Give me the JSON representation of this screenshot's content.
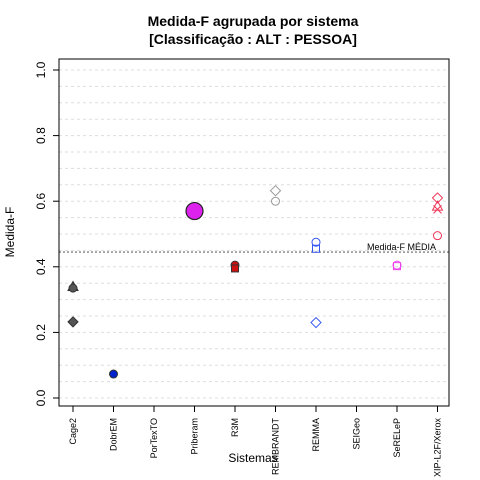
{
  "chart_data": {
    "type": "scatter",
    "title": "Medida-F agrupada por sistema",
    "subtitle": "[Classificação : ALT : PESSOA]",
    "xlabel": "Sistemas",
    "ylabel": "Medida-F",
    "ylim": [
      0.0,
      1.0
    ],
    "yticks": [
      "0.0",
      "0.2",
      "0.4",
      "0.6",
      "0.8",
      "1.0"
    ],
    "categories": [
      "Cage2",
      "DobrEM",
      "PorTexTO",
      "Priberam",
      "R3M",
      "REMBRANDT",
      "REMMA",
      "SEIGeo",
      "SeRELeP",
      "XIP-L2F/Xerox"
    ],
    "grid": true,
    "reference_line": {
      "label": "Medida-F MÉDIA",
      "value": 0.445
    },
    "points": [
      {
        "category": "Cage2",
        "y": 0.34,
        "shape": "triangle",
        "color": "#555555",
        "filled": true
      },
      {
        "category": "Cage2",
        "y": 0.335,
        "shape": "circle",
        "color": "#555555",
        "filled": true
      },
      {
        "category": "Cage2",
        "y": 0.232,
        "shape": "diamond",
        "color": "#555555",
        "filled": true
      },
      {
        "category": "DobrEM",
        "y": 0.073,
        "shape": "circle",
        "color": "#0022cc",
        "filled": true
      },
      {
        "category": "Priberam",
        "y": 0.57,
        "shape": "circle-large",
        "color": "#dd22ee",
        "filled": true
      },
      {
        "category": "R3M",
        "y": 0.405,
        "shape": "circle",
        "color": "#cc1111",
        "filled": true
      },
      {
        "category": "R3M",
        "y": 0.395,
        "shape": "square",
        "color": "#cc1111",
        "filled": true
      },
      {
        "category": "REMBRANDT",
        "y": 0.632,
        "shape": "diamond",
        "color": "#999999",
        "filled": false
      },
      {
        "category": "REMBRANDT",
        "y": 0.6,
        "shape": "circle",
        "color": "#999999",
        "filled": false
      },
      {
        "category": "REMMA",
        "y": 0.475,
        "shape": "circle",
        "color": "#3355ee",
        "filled": false
      },
      {
        "category": "REMMA",
        "y": 0.455,
        "shape": "square",
        "color": "#3355ee",
        "filled": false
      },
      {
        "category": "REMMA",
        "y": 0.23,
        "shape": "diamond",
        "color": "#3355ee",
        "filled": false
      },
      {
        "category": "SeRELeP",
        "y": 0.405,
        "shape": "circle",
        "color": "#ee44ee",
        "filled": false
      },
      {
        "category": "SeRELeP",
        "y": 0.402,
        "shape": "square",
        "color": "#ee44ee",
        "filled": false
      },
      {
        "category": "XIP-L2F/Xerox",
        "y": 0.61,
        "shape": "diamond",
        "color": "#ee3355",
        "filled": false
      },
      {
        "category": "XIP-L2F/Xerox",
        "y": 0.585,
        "shape": "triangle",
        "color": "#ee3355",
        "filled": false
      },
      {
        "category": "XIP-L2F/Xerox",
        "y": 0.575,
        "shape": "x",
        "color": "#ee3355",
        "filled": false
      },
      {
        "category": "XIP-L2F/Xerox",
        "y": 0.495,
        "shape": "circle",
        "color": "#ee3355",
        "filled": false
      }
    ]
  }
}
